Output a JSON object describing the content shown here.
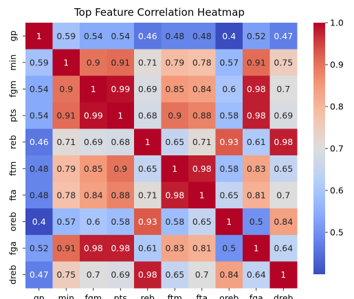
{
  "chart_data": {
    "type": "heatmap",
    "title": "Top Feature Correlation Heatmap",
    "colormap": "coolwarm",
    "colors": {
      "low": "#3b4cc0",
      "mid": "#dddddd",
      "high": "#b40426"
    },
    "vmin": 0.4,
    "vmax": 1.0,
    "x_labels": [
      "gp",
      "min",
      "fgm",
      "pts",
      "reb",
      "ftm",
      "fta",
      "oreb",
      "fga",
      "dreb"
    ],
    "y_labels": [
      "gp",
      "min",
      "fgm",
      "pts",
      "reb",
      "ftm",
      "fta",
      "oreb",
      "fga",
      "dreb"
    ],
    "values": [
      [
        1,
        0.59,
        0.54,
        0.54,
        0.46,
        0.48,
        0.48,
        0.4,
        0.52,
        0.47
      ],
      [
        0.59,
        1,
        0.9,
        0.91,
        0.71,
        0.79,
        0.78,
        0.57,
        0.91,
        0.75
      ],
      [
        0.54,
        0.9,
        1,
        0.99,
        0.69,
        0.85,
        0.84,
        0.6,
        0.98,
        0.7
      ],
      [
        0.54,
        0.91,
        0.99,
        1,
        0.68,
        0.9,
        0.88,
        0.58,
        0.98,
        0.69
      ],
      [
        0.46,
        0.71,
        0.69,
        0.68,
        1,
        0.65,
        0.71,
        0.93,
        0.61,
        0.98
      ],
      [
        0.48,
        0.79,
        0.85,
        0.9,
        0.65,
        1,
        0.98,
        0.58,
        0.83,
        0.65
      ],
      [
        0.48,
        0.78,
        0.84,
        0.88,
        0.71,
        0.98,
        1,
        0.65,
        0.81,
        0.7
      ],
      [
        0.4,
        0.57,
        0.6,
        0.58,
        0.93,
        0.58,
        0.65,
        1,
        0.5,
        0.84
      ],
      [
        0.52,
        0.91,
        0.98,
        0.98,
        0.61,
        0.83,
        0.81,
        0.5,
        1,
        0.64
      ],
      [
        0.47,
        0.75,
        0.7,
        0.69,
        0.98,
        0.65,
        0.7,
        0.84,
        0.64,
        1
      ]
    ],
    "colorbar_ticks": [
      0.5,
      0.6,
      0.7,
      0.8,
      0.9,
      1.0
    ],
    "colorbar_tick_labels": [
      "0.5",
      "0.6",
      "0.7",
      "0.8",
      "0.9",
      "1.0"
    ]
  }
}
